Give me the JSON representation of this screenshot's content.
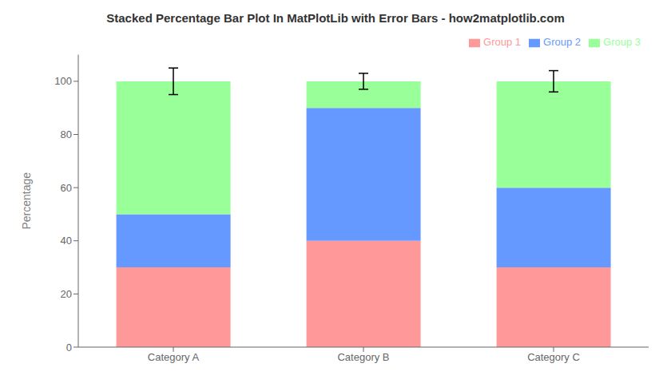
{
  "chart_data": {
    "type": "bar",
    "title": "Stacked Percentage Bar Plot In MatPlotLib with Error Bars - how2matplotlib.com",
    "ylabel": "Percentage",
    "categories": [
      "Category A",
      "Category B",
      "Category C"
    ],
    "series": [
      {
        "name": "Group 1",
        "color": "#FF9999",
        "values": [
          30,
          40,
          30
        ]
      },
      {
        "name": "Group 2",
        "color": "#6699FF",
        "values": [
          20,
          50,
          30
        ]
      },
      {
        "name": "Group 3",
        "color": "#99FF99",
        "values": [
          50,
          10,
          40
        ]
      }
    ],
    "stacked": true,
    "ylim": [
      0,
      110
    ],
    "yticks": [
      0,
      20,
      40,
      60,
      80,
      100
    ],
    "grid": false,
    "legend": "upper right",
    "error_values": [
      5,
      3,
      4
    ],
    "error_positions": [
      100,
      100,
      100
    ]
  }
}
